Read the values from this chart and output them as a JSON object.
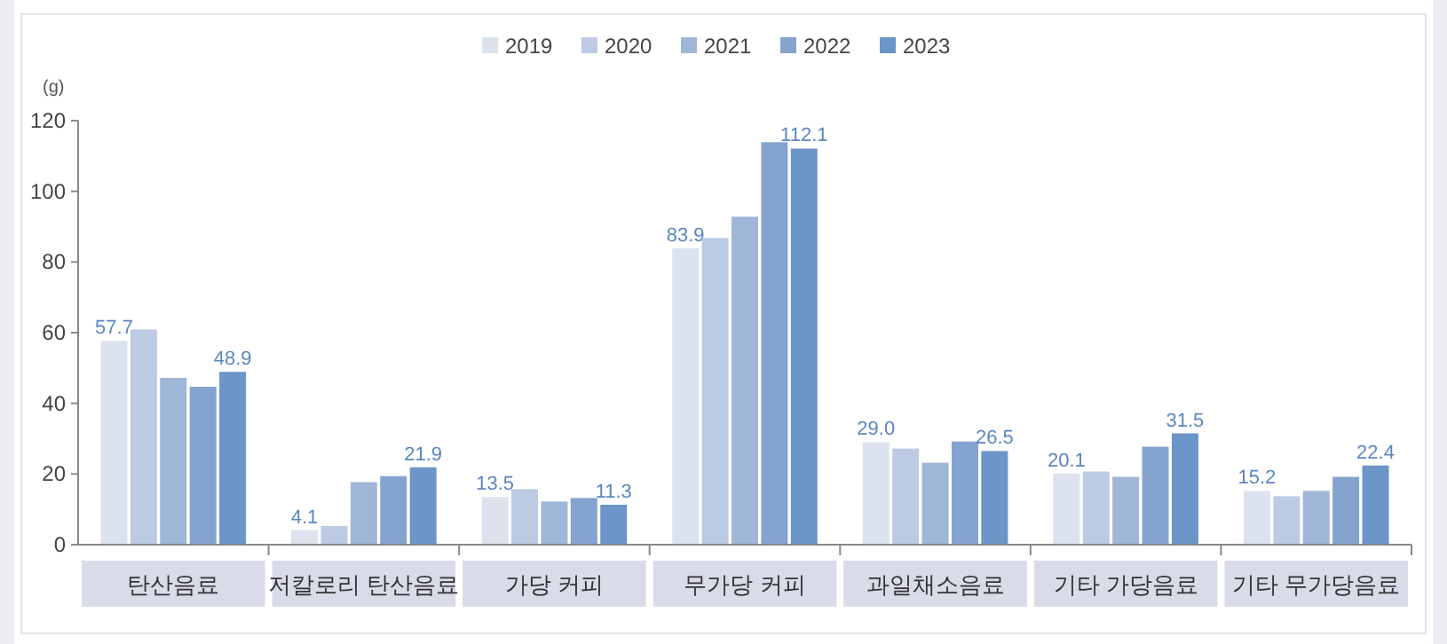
{
  "chart_data": {
    "type": "bar",
    "ylabel": "(g)",
    "categories": [
      "탄산음료",
      "저칼로리 탄산음료",
      "가당 커피",
      "무가당 커피",
      "과일채소음료",
      "기타 가당음료",
      "기타 무가당음료"
    ],
    "series": [
      {
        "name": "2019",
        "color": "#dce3ef",
        "values": [
          57.7,
          4.1,
          13.5,
          83.9,
          29.0,
          20.1,
          15.2
        ],
        "value_labels": [
          "57.7",
          "4.1",
          "13.5",
          "83.9",
          "29.0",
          "20.1",
          "15.2"
        ]
      },
      {
        "name": "2020",
        "color": "#bccbe3",
        "values": [
          60.9,
          5.3,
          15.7,
          86.8,
          27.2,
          20.7,
          13.7
        ]
      },
      {
        "name": "2021",
        "color": "#9fb6d8",
        "values": [
          47.2,
          17.7,
          12.2,
          92.8,
          23.2,
          19.2,
          15.2
        ]
      },
      {
        "name": "2022",
        "color": "#84a4cf",
        "values": [
          44.7,
          19.4,
          13.2,
          113.9,
          29.2,
          27.7,
          19.2
        ]
      },
      {
        "name": "2023",
        "color": "#6b96c7",
        "values": [
          48.9,
          21.9,
          11.3,
          112.1,
          26.5,
          31.5,
          22.4
        ],
        "value_labels": [
          "48.9",
          "21.9",
          "11.3",
          "112.1",
          "26.5",
          "31.5",
          "22.4"
        ]
      }
    ],
    "ylim": [
      0,
      120
    ],
    "yticks": [
      0,
      20,
      40,
      60,
      80,
      100,
      120
    ],
    "legend": "top",
    "grid": false
  }
}
